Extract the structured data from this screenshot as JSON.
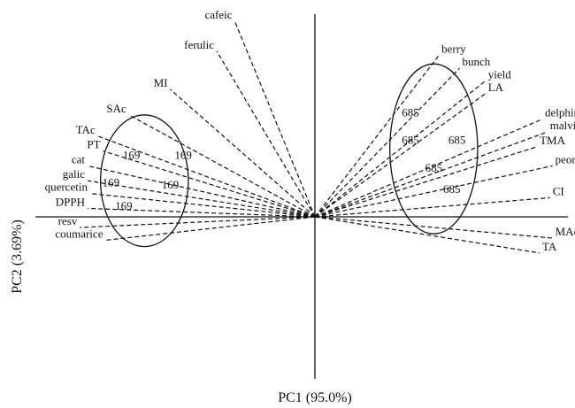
{
  "chart_data": {
    "type": "scatter",
    "subtype": "pca-biplot",
    "xlabel": "PC1 (95.0%)",
    "ylabel": "PC2 (3.69%)",
    "xlim": [
      -1.1,
      1.1
    ],
    "ylim": [
      -0.95,
      0.95
    ],
    "grid": false,
    "legend": "none",
    "loadings": [
      {
        "name": "cafeic",
        "x": -0.31,
        "y": 0.92
      },
      {
        "name": "ferulic",
        "x": -0.38,
        "y": 0.78
      },
      {
        "name": "MI",
        "x": -0.56,
        "y": 0.6
      },
      {
        "name": "SAc",
        "x": -0.72,
        "y": 0.48
      },
      {
        "name": "TAc",
        "x": -0.84,
        "y": 0.38
      },
      {
        "name": "PT",
        "x": -0.82,
        "y": 0.31
      },
      {
        "name": "cat",
        "x": -0.88,
        "y": 0.24
      },
      {
        "name": "galic",
        "x": -0.88,
        "y": 0.17
      },
      {
        "name": "quercetin",
        "x": -0.87,
        "y": 0.11
      },
      {
        "name": "DPPH",
        "x": -0.88,
        "y": 0.04
      },
      {
        "name": "resv",
        "x": -0.91,
        "y": -0.05
      },
      {
        "name": "coumarice",
        "x": -0.81,
        "y": -0.11
      },
      {
        "name": "berry",
        "x": 0.48,
        "y": 0.76
      },
      {
        "name": "bunch",
        "x": 0.56,
        "y": 0.7
      },
      {
        "name": "yield",
        "x": 0.66,
        "y": 0.64
      },
      {
        "name": "LA",
        "x": 0.66,
        "y": 0.58
      },
      {
        "name": "delphinidin",
        "x": 0.88,
        "y": 0.46
      },
      {
        "name": "malvidin",
        "x": 0.9,
        "y": 0.4
      },
      {
        "name": "TMA",
        "x": 0.86,
        "y": 0.33
      },
      {
        "name": "peonidin",
        "x": 0.92,
        "y": 0.24
      },
      {
        "name": "CI",
        "x": 0.91,
        "y": 0.09
      },
      {
        "name": "MAc",
        "x": 0.92,
        "y": -0.1
      },
      {
        "name": "TA",
        "x": 0.87,
        "y": -0.17
      }
    ],
    "scores": [
      {
        "label": "169",
        "x": -0.71,
        "y": 0.29
      },
      {
        "label": "169",
        "x": -0.51,
        "y": 0.29
      },
      {
        "label": "169",
        "x": -0.79,
        "y": 0.16
      },
      {
        "label": "169",
        "x": -0.56,
        "y": 0.15
      },
      {
        "label": "169",
        "x": -0.74,
        "y": 0.05
      },
      {
        "label": "685",
        "x": 0.37,
        "y": 0.49
      },
      {
        "label": "685",
        "x": 0.37,
        "y": 0.36
      },
      {
        "label": "685",
        "x": 0.55,
        "y": 0.36
      },
      {
        "label": "685",
        "x": 0.46,
        "y": 0.23
      },
      {
        "label": "685",
        "x": 0.53,
        "y": 0.13
      }
    ],
    "groups": [
      {
        "label": "169",
        "cx": -0.66,
        "cy": 0.17,
        "rx": 0.17,
        "ry": 0.31
      },
      {
        "label": "685",
        "cx": 0.46,
        "cy": 0.32,
        "rx": 0.17,
        "ry": 0.4
      }
    ]
  }
}
